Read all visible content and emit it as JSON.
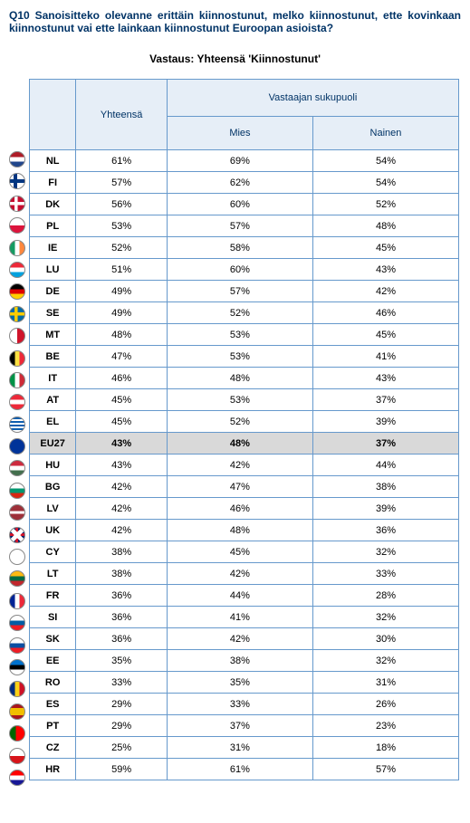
{
  "question": "Q10 Sanoisitteko olevanne erittäin kiinnostunut, melko kiinnostunut, ette kovinkaan kiinnostunut vai ette lainkaan kiinnostunut Euroopan asioista?",
  "answer_title": "Vastaus: Yhteensä 'Kiinnostunut'",
  "headers": {
    "total": "Yhteensä",
    "group": "Vastaajan sukupuoli",
    "male": "Mies",
    "female": "Nainen"
  },
  "rows": [
    {
      "code": "NL",
      "total": "61%",
      "m": "69%",
      "f": "54%",
      "flag_css": "background: linear-gradient(to bottom,#ae1c28 33%,#fff 33%,#fff 66%,#21468b 66%);"
    },
    {
      "code": "FI",
      "total": "57%",
      "m": "62%",
      "f": "54%",
      "flag_css": "background:#fff; background-image:linear-gradient(#003580,#003580),linear-gradient(#003580,#003580); background-size:100% 28%,28% 100%; background-position:0 50%,35% 0; background-repeat:no-repeat;"
    },
    {
      "code": "DK",
      "total": "56%",
      "m": "60%",
      "f": "52%",
      "flag_css": "background:#c60c30; background-image:linear-gradient(#fff,#fff),linear-gradient(#fff,#fff); background-size:100% 22%,22% 100%; background-position:0 50%,38% 0; background-repeat:no-repeat;"
    },
    {
      "code": "PL",
      "total": "53%",
      "m": "57%",
      "f": "48%",
      "flag_css": "background: linear-gradient(to bottom,#fff 50%,#dc143c 50%);"
    },
    {
      "code": "IE",
      "total": "52%",
      "m": "58%",
      "f": "45%",
      "flag_css": "background: linear-gradient(to right,#169b62 33%,#fff 33%,#fff 66%,#ff883e 66%);"
    },
    {
      "code": "LU",
      "total": "51%",
      "m": "60%",
      "f": "43%",
      "flag_css": "background: linear-gradient(to bottom,#ed2939 33%,#fff 33%,#fff 66%,#00a1de 66%);"
    },
    {
      "code": "DE",
      "total": "49%",
      "m": "57%",
      "f": "42%",
      "flag_css": "background: linear-gradient(to bottom,#000 33%,#dd0000 33%,#dd0000 66%,#ffce00 66%);"
    },
    {
      "code": "SE",
      "total": "49%",
      "m": "52%",
      "f": "46%",
      "flag_css": "background:#006aa7; background-image:linear-gradient(#fecc00,#fecc00),linear-gradient(#fecc00,#fecc00); background-size:100% 22%,22% 100%; background-position:0 50%,38% 0; background-repeat:no-repeat;"
    },
    {
      "code": "MT",
      "total": "48%",
      "m": "53%",
      "f": "45%",
      "flag_css": "background: linear-gradient(to right,#fff 50%,#cf142b 50%);"
    },
    {
      "code": "BE",
      "total": "47%",
      "m": "53%",
      "f": "41%",
      "flag_css": "background: linear-gradient(to right,#000 33%,#fae042 33%,#fae042 66%,#ed2939 66%);"
    },
    {
      "code": "IT",
      "total": "46%",
      "m": "48%",
      "f": "43%",
      "flag_css": "background: linear-gradient(to right,#009246 33%,#fff 33%,#fff 66%,#ce2b37 66%);"
    },
    {
      "code": "AT",
      "total": "45%",
      "m": "53%",
      "f": "37%",
      "flag_css": "background: linear-gradient(to bottom,#ed2939 33%,#fff 33%,#fff 66%,#ed2939 66%);"
    },
    {
      "code": "EL",
      "total": "45%",
      "m": "52%",
      "f": "39%",
      "flag_css": "background: repeating-linear-gradient(#0d5eaf,#0d5eaf 2px,#fff 2px,#fff 4px);"
    },
    {
      "code": "EU27",
      "total": "43%",
      "m": "48%",
      "f": "37%",
      "flag_css": "background:#003399;",
      "highlight": true
    },
    {
      "code": "HU",
      "total": "43%",
      "m": "42%",
      "f": "44%",
      "flag_css": "background: linear-gradient(to bottom,#cd2a3e 33%,#fff 33%,#fff 66%,#436f4d 66%);"
    },
    {
      "code": "BG",
      "total": "42%",
      "m": "47%",
      "f": "38%",
      "flag_css": "background: linear-gradient(to bottom,#fff 33%,#00966e 33%,#00966e 66%,#d62612 66%);"
    },
    {
      "code": "LV",
      "total": "42%",
      "m": "46%",
      "f": "39%",
      "flag_css": "background: linear-gradient(to bottom,#9e3039 40%,#fff 40%,#fff 60%,#9e3039 60%);"
    },
    {
      "code": "UK",
      "total": "42%",
      "m": "48%",
      "f": "36%",
      "flag_css": "background:#012169; background-image:linear-gradient(45deg,transparent 40%,#fff 40%,#fff 60%,transparent 60%),linear-gradient(-45deg,transparent 40%,#fff 40%,#fff 60%,transparent 60%),linear-gradient(#cf142b,#cf142b),linear-gradient(#cf142b,#cf142b); background-size:100% 100%,100% 100%,100% 20%,20% 100%; background-position:0 0,0 0,0 50%,50% 0; background-repeat:no-repeat;"
    },
    {
      "code": "CY",
      "total": "38%",
      "m": "45%",
      "f": "32%",
      "flag_css": "background:#fff;"
    },
    {
      "code": "LT",
      "total": "38%",
      "m": "42%",
      "f": "33%",
      "flag_css": "background: linear-gradient(to bottom,#fdb913 33%,#006a44 33%,#006a44 66%,#c1272d 66%);"
    },
    {
      "code": "FR",
      "total": "36%",
      "m": "44%",
      "f": "28%",
      "flag_css": "background: linear-gradient(to right,#002395 33%,#fff 33%,#fff 66%,#ed2939 66%);"
    },
    {
      "code": "SI",
      "total": "36%",
      "m": "41%",
      "f": "32%",
      "flag_css": "background: linear-gradient(to bottom,#fff 33%,#005da4 33%,#005da4 66%,#ed1c24 66%);"
    },
    {
      "code": "SK",
      "total": "36%",
      "m": "42%",
      "f": "30%",
      "flag_css": "background: linear-gradient(to bottom,#fff 33%,#0b4ea2 33%,#0b4ea2 66%,#ee1c25 66%);"
    },
    {
      "code": "EE",
      "total": "35%",
      "m": "38%",
      "f": "32%",
      "flag_css": "background: linear-gradient(to bottom,#0072ce 33%,#000 33%,#000 66%,#fff 66%);"
    },
    {
      "code": "RO",
      "total": "33%",
      "m": "35%",
      "f": "31%",
      "flag_css": "background: linear-gradient(to right,#002b7f 33%,#fcd116 33%,#fcd116 66%,#ce1126 66%);"
    },
    {
      "code": "ES",
      "total": "29%",
      "m": "33%",
      "f": "26%",
      "flag_css": "background: linear-gradient(to bottom,#aa151b 25%,#f1bf00 25%,#f1bf00 75%,#aa151b 75%);"
    },
    {
      "code": "PT",
      "total": "29%",
      "m": "37%",
      "f": "23%",
      "flag_css": "background: linear-gradient(to right,#006600 40%,#ff0000 40%);"
    },
    {
      "code": "CZ",
      "total": "25%",
      "m": "31%",
      "f": "18%",
      "flag_css": "background: linear-gradient(to bottom,#fff 50%,#d7141a 50%);"
    },
    {
      "code": "HR",
      "total": "59%",
      "m": "61%",
      "f": "57%",
      "flag_css": "background: linear-gradient(to bottom,#ff0000 33%,#fff 33%,#fff 66%,#171796 66%);"
    }
  ]
}
